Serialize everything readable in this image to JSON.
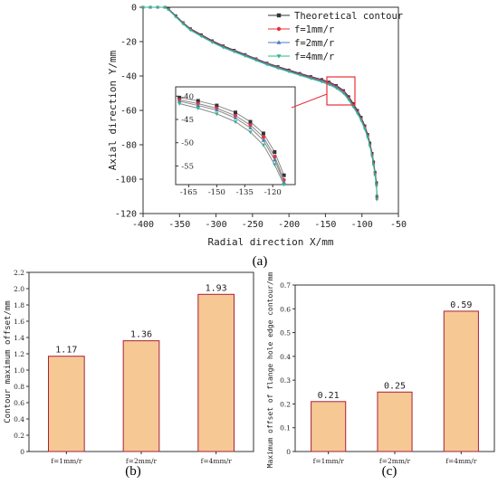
{
  "chart_data": [
    {
      "panel": "(a)",
      "type": "line",
      "xlabel": "Radial direction X/mm",
      "ylabel": "Axial direction Y/mm",
      "xlim": [
        -400,
        -50
      ],
      "ylim": [
        -120,
        0
      ],
      "xticks": [
        -400,
        -350,
        -300,
        -250,
        -200,
        -150,
        -100,
        -50
      ],
      "yticks": [
        0,
        -20,
        -40,
        -60,
        -80,
        -100,
        -120
      ],
      "legend_position": "top-right",
      "series": [
        {
          "name": "Theoretical contour",
          "color": "#333333",
          "marker": "square",
          "x": [
            -400,
            -390,
            -380,
            -370,
            -365,
            -355,
            -345,
            -335,
            -320,
            -305,
            -290,
            -275,
            -260,
            -245,
            -230,
            -215,
            -200,
            -185,
            -170,
            -155,
            -145,
            -135,
            -125,
            -118,
            -112,
            -106,
            -101,
            -96,
            -92,
            -89,
            -86,
            -84,
            -82,
            -80,
            -79.5
          ],
          "y": [
            0,
            0,
            0,
            0,
            -1,
            -5,
            -9,
            -12.5,
            -16,
            -19.5,
            -22.5,
            -25,
            -27.5,
            -30,
            -32.5,
            -34.5,
            -36.5,
            -38.5,
            -40.3,
            -42,
            -43.5,
            -45.5,
            -48.5,
            -52,
            -56,
            -60,
            -64,
            -69,
            -74,
            -79,
            -85,
            -90,
            -96,
            -102,
            -110
          ]
        },
        {
          "name": "f=1mm/r",
          "color": "#e8303a",
          "marker": "circle",
          "x": [
            -400,
            -390,
            -380,
            -370,
            -365,
            -355,
            -345,
            -335,
            -320,
            -305,
            -290,
            -275,
            -260,
            -245,
            -230,
            -215,
            -200,
            -185,
            -170,
            -155,
            -145,
            -135,
            -125,
            -118,
            -112,
            -106,
            -101,
            -96,
            -92,
            -89,
            -86,
            -84,
            -82,
            -80,
            -79.5
          ],
          "y": [
            0,
            0,
            0,
            0,
            -1.2,
            -5.3,
            -9.3,
            -12.8,
            -16.4,
            -19.9,
            -22.9,
            -25.3,
            -27.8,
            -30.3,
            -32.8,
            -34.9,
            -36.9,
            -38.9,
            -40.8,
            -42.6,
            -44.1,
            -46.1,
            -49.1,
            -52.8,
            -56.8,
            -60.8,
            -64.8,
            -69.8,
            -74.8,
            -79.8,
            -85.8,
            -90.8,
            -96.8,
            -103,
            -111
          ]
        },
        {
          "name": "f=2mm/r",
          "color": "#4a78c8",
          "marker": "triangle-up",
          "x": [
            -400,
            -390,
            -380,
            -370,
            -365,
            -355,
            -345,
            -335,
            -320,
            -305,
            -290,
            -275,
            -260,
            -245,
            -230,
            -215,
            -200,
            -185,
            -170,
            -155,
            -145,
            -135,
            -125,
            -118,
            -112,
            -106,
            -101,
            -96,
            -92,
            -89,
            -86,
            -84,
            -82,
            -80,
            -79.5
          ],
          "y": [
            0,
            0,
            0,
            0,
            -1.3,
            -5.4,
            -9.5,
            -13,
            -16.6,
            -20.1,
            -23.1,
            -25.5,
            -28,
            -30.5,
            -33,
            -35.1,
            -37.1,
            -39.1,
            -41.1,
            -42.9,
            -44.5,
            -46.5,
            -49.5,
            -53.3,
            -57.3,
            -61.3,
            -65.3,
            -70.3,
            -75.3,
            -80.3,
            -86.3,
            -91.3,
            -97.3,
            -103.5,
            -111.5
          ]
        },
        {
          "name": "f=4mm/r",
          "color": "#2eb88a",
          "marker": "triangle-down",
          "x": [
            -400,
            -390,
            -380,
            -370,
            -365,
            -355,
            -345,
            -335,
            -320,
            -305,
            -290,
            -275,
            -260,
            -245,
            -230,
            -215,
            -200,
            -185,
            -170,
            -155,
            -145,
            -135,
            -125,
            -118,
            -112,
            -106,
            -101,
            -96,
            -92,
            -89,
            -86,
            -84,
            -82,
            -80,
            -79.5
          ],
          "y": [
            0,
            0,
            0,
            0,
            -1.5,
            -5.7,
            -9.8,
            -13.4,
            -17,
            -20.5,
            -23.5,
            -26,
            -28.5,
            -31,
            -33.5,
            -35.6,
            -37.6,
            -39.6,
            -41.6,
            -43.5,
            -45.1,
            -47.2,
            -50.3,
            -54,
            -58,
            -62,
            -66,
            -71,
            -76,
            -81,
            -87,
            -92,
            -98,
            -104,
            -112
          ]
        }
      ],
      "inset": {
        "xticks": [
          -165,
          -150,
          -135,
          -120
        ],
        "yticks": [
          -40,
          -45,
          -50,
          -55
        ],
        "xlim": [
          -172,
          -108
        ],
        "ylim": [
          -59,
          -38
        ],
        "series": [
          {
            "x": [
              -170,
              -160,
              -150,
              -140,
              -132,
              -125,
              -119,
              -114
            ],
            "y": [
              -40.3,
              -41,
              -42,
              -43.5,
              -45.5,
              -48,
              -52,
              -57
            ]
          },
          {
            "x": [
              -170,
              -160,
              -150,
              -140,
              -132,
              -125,
              -119,
              -114
            ],
            "y": [
              -40.8,
              -41.6,
              -42.6,
              -44.2,
              -46.2,
              -48.8,
              -53,
              -58
            ]
          },
          {
            "x": [
              -170,
              -160,
              -150,
              -140,
              -132,
              -125,
              -119,
              -114
            ],
            "y": [
              -41.1,
              -42,
              -43,
              -44.7,
              -46.8,
              -49.5,
              -53.7,
              -58.5
            ]
          },
          {
            "x": [
              -170,
              -160,
              -150,
              -140,
              -132,
              -125,
              -119,
              -114
            ],
            "y": [
              -41.6,
              -42.6,
              -43.8,
              -45.5,
              -47.7,
              -50.5,
              -54.7,
              -59
            ]
          }
        ]
      }
    },
    {
      "panel": "(b)",
      "type": "bar",
      "categories": [
        "f=1mm/r",
        "f=2mm/r",
        "f=4mm/r"
      ],
      "values": [
        1.17,
        1.36,
        1.93
      ],
      "value_labels": [
        "1.17",
        "1.36",
        "1.93"
      ],
      "ylabel": "Contour maximum offset/mm",
      "ylim": [
        0,
        2.2
      ],
      "yticks": [
        "0",
        "0.2",
        "0.4",
        "0.6",
        "0.8",
        "1.0",
        "1.2",
        "1.4",
        "1.6",
        "1.8",
        "2.0",
        "2.2"
      ],
      "bar_color": "#f5c894",
      "bar_edge": "#a8203a"
    },
    {
      "panel": "(c)",
      "type": "bar",
      "categories": [
        "f=1mm/r",
        "f=2mm/r",
        "f=4mm/r"
      ],
      "values": [
        0.21,
        0.25,
        0.59
      ],
      "value_labels": [
        "0.21",
        "0.25",
        "0.59"
      ],
      "ylabel": "Maximum offset of flange hole edge contour/mm",
      "ylim": [
        0,
        0.7
      ],
      "yticks": [
        "0",
        "0.1",
        "0.2",
        "0.3",
        "0.4",
        "0.5",
        "0.6",
        "0.7"
      ],
      "bar_color": "#f5c894",
      "bar_edge": "#a8203a"
    }
  ]
}
